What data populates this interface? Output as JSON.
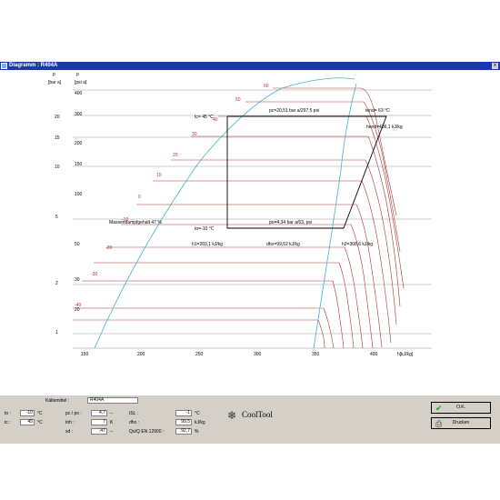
{
  "window": {
    "title": "Diagramm : R404A",
    "close_glyph": "x"
  },
  "axes": {
    "p_bar_header": "p",
    "p_bar_unit": "[bar a]",
    "p_psi_header": "p",
    "p_psi_unit": "[psi a]",
    "x_unit": "h[kJ/kg]",
    "bar_ticks": [
      "20",
      "15",
      "10",
      "5",
      "2",
      "1"
    ],
    "psi_ticks": [
      "400",
      "300",
      "200",
      "150",
      "100",
      "50",
      "30",
      "20"
    ],
    "x_ticks": [
      "150",
      "200",
      "250",
      "300",
      "350",
      "400"
    ]
  },
  "temp_labels": [
    "60",
    "50",
    "40",
    "30",
    "20",
    "10",
    "0",
    "-10",
    "-20",
    "-30",
    "-40"
  ],
  "annotations": {
    "tc": "tc= 45 °C",
    "pc": "pc=20,51 bar a/297,5 psi",
    "tend": "tend= 63 °C",
    "hend": "hend=436,1 kJ/kg",
    "to": "to=-10 °C",
    "po": "po=4,34 bar a/63, psi",
    "mass": "Massendampfgehalt  47  %",
    "h1": "h1=269,1 kJ/kg",
    "dho": "dho=99,52 kJ/kg",
    "h2": "h2=368,6 kJ/kg"
  },
  "bottom": {
    "refrigerant_label": "Kältemittel :",
    "refrigerant_value": "R404A",
    "to_label": "to :",
    "to_value": "-10",
    "to_unit": "°C",
    "tc_label": "tc :",
    "tc_value": "45",
    "tc_unit": "°C",
    "ratio_label": "pc / po :",
    "ratio_value": "4,7",
    "ratio_unit": "--",
    "toh_label": "toh :",
    "toh_value": "7",
    "toh_unit": "K",
    "xd_label": "xd :",
    "xd_value": ",47",
    "xd_unit": "--",
    "isl_label": "tSL :",
    "isl_value": "-1",
    "isl_unit": "°C",
    "dho_label": "dho :",
    "dho_value": "99,5",
    "dho_unit": "kJ/kg",
    "qo_label": "Qo/Q EN 12900 :",
    "qo_value": "92,7",
    "qo_unit": "%",
    "logo_text": "CoolTool",
    "ok_label": "O.K.",
    "print_label": "Drucken"
  }
}
